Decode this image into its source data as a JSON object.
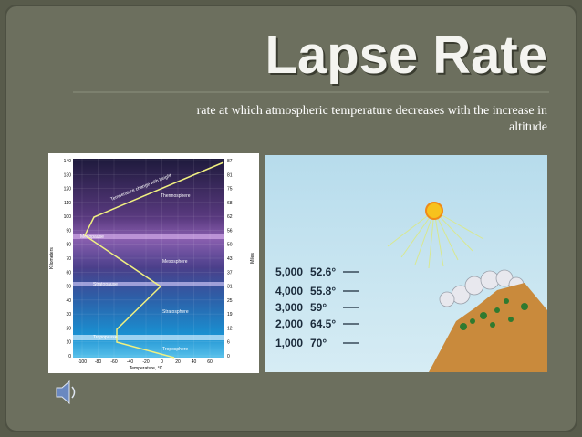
{
  "slide": {
    "title": "Lapse Rate",
    "subtitle_lines": [
      "rate at which atmospheric temperature decreases with the increase in",
      "altitude"
    ],
    "atmosphere_figure": {
      "km_ticks": [
        "140",
        "130",
        "120",
        "110",
        "100",
        "90",
        "80",
        "70",
        "60",
        "50",
        "40",
        "30",
        "20",
        "10",
        "0"
      ],
      "mile_ticks": [
        "87",
        "81",
        "75",
        "68",
        "62",
        "56",
        "50",
        "43",
        "37",
        "31",
        "25",
        "19",
        "12",
        "6",
        "0"
      ],
      "temp_ticks": [
        "-100",
        "-80",
        "-60",
        "-40",
        "-20",
        "0",
        "20",
        "40",
        "60"
      ],
      "left_axis_label": "Kilometers",
      "right_axis_label": "Miles",
      "bottom_axis_label": "Temperature, °C",
      "curve_label": "Temperature change with height",
      "layers": [
        "Thermosphere",
        "Mesopause",
        "Mesosphere",
        "Stratopause",
        "Stratosphere",
        "Tropopause",
        "Troposphere"
      ]
    },
    "mountain_figure": {
      "rows": [
        {
          "altitude": "5,000",
          "temperature": "52.6°"
        },
        {
          "altitude": "4,000",
          "temperature": "55.8°"
        },
        {
          "altitude": "3,000",
          "temperature": "59°"
        },
        {
          "altitude": "2,000",
          "temperature": "64.5°"
        },
        {
          "altitude": "1,000",
          "temperature": "70°"
        }
      ]
    }
  }
}
